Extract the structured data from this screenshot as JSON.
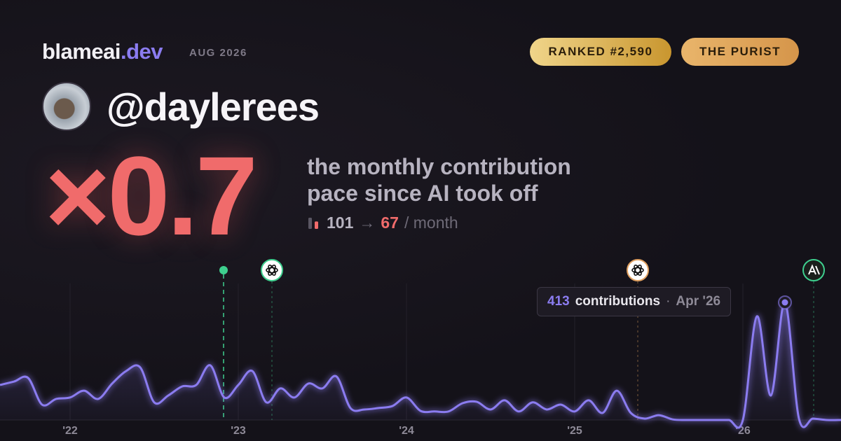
{
  "header": {
    "brand": "blameai",
    "brand_suffix": ".dev",
    "date": "AUG 2026",
    "badges": [
      "RANKED #2,590",
      "THE PURIST"
    ]
  },
  "profile": {
    "handle": "@daylerees"
  },
  "stats": {
    "multiplier": "×0.7",
    "caption_line1": "the monthly contribution",
    "caption_line2": "pace since AI took off",
    "before": 101,
    "arrow": "→",
    "after": 67,
    "unit": "/ month"
  },
  "chart_data": {
    "type": "line",
    "color": "#8b7cf0",
    "categories": [
      null,
      null,
      null,
      null,
      null,
      "'22",
      null,
      null,
      null,
      null,
      null,
      null,
      null,
      null,
      null,
      null,
      null,
      "'23",
      null,
      null,
      null,
      null,
      null,
      null,
      null,
      null,
      null,
      null,
      null,
      "'24",
      null,
      null,
      null,
      null,
      null,
      null,
      null,
      null,
      null,
      null,
      null,
      "'25",
      null,
      null,
      null,
      null,
      null,
      null,
      null,
      null,
      null,
      null,
      null,
      "'26",
      null,
      null,
      null,
      null,
      null,
      null,
      null
    ],
    "values": [
      123,
      135,
      148,
      54,
      74,
      79,
      103,
      74,
      128,
      172,
      185,
      62,
      86,
      118,
      123,
      192,
      79,
      123,
      172,
      62,
      111,
      79,
      128,
      111,
      153,
      42,
      37,
      42,
      49,
      79,
      32,
      30,
      30,
      59,
      64,
      37,
      69,
      30,
      62,
      37,
      54,
      30,
      69,
      25,
      103,
      25,
      5,
      17,
      2,
      0,
      0,
      0,
      0,
      0,
      364,
      86,
      413,
      5,
      5,
      0,
      0
    ],
    "tooltip": {
      "value": 413,
      "label": "contributions",
      "separator": "·",
      "date": "Apr '26"
    }
  }
}
